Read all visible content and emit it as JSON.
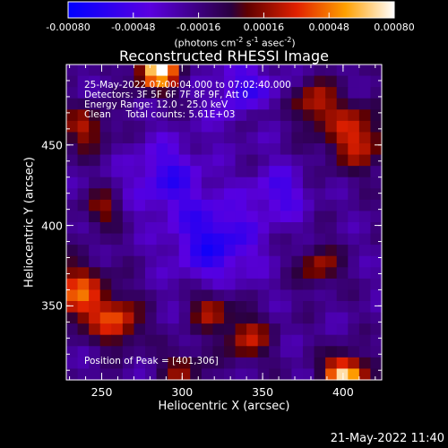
{
  "colorbar": {
    "ticks": [
      "-0.00080",
      "-0.00048",
      "-0.00016",
      "0.00016",
      "0.00048",
      "0.00080"
    ],
    "unit": "(photons cm",
    "unit_exp1": "-2",
    "unit_mid": " s",
    "unit_exp2": "-1",
    "unit_tail": " asec",
    "unit_exp3": "-2",
    "unit_end": ")"
  },
  "annotations": {
    "line1": "25-May-2022 07:00:04.000 to 07:02:40.000",
    "line2": "Detectors: 3F 5F 6F 7F 8F 9F, Att 0",
    "line3": "Energy Range: 12.0 - 25.0 keV",
    "line4": "Clean     Total counts: 5.61E+03",
    "peak": "Position of Peak = [401,306]"
  },
  "footer": "21-May-2022 11:40",
  "chart_data": {
    "type": "heatmap",
    "title": "Reconstructed RHESSI Image",
    "xlabel": "Heliocentric X (arcsec)",
    "ylabel": "Heliocentric Y (arcsec)",
    "xlim": [
      228,
      424
    ],
    "ylim": [
      304,
      500
    ],
    "xticks": [
      250,
      300,
      350,
      400
    ],
    "yticks": [
      350,
      400,
      450
    ],
    "clim": [
      -0.0008,
      0.0008
    ],
    "colormap": "rhessi",
    "peak": [
      401,
      306
    ],
    "grid_n": 28,
    "sources": [
      {
        "x": 285,
        "y": 497,
        "amp": 0.00095,
        "sigma": 9
      },
      {
        "x": 401,
        "y": 306,
        "amp": 0.00095,
        "sigma": 9
      },
      {
        "x": 408,
        "y": 455,
        "amp": 0.0005,
        "sigma": 14
      },
      {
        "x": 382,
        "y": 476,
        "amp": 0.00045,
        "sigma": 10
      },
      {
        "x": 235,
        "y": 357,
        "amp": 0.0006,
        "sigma": 13
      },
      {
        "x": 260,
        "y": 340,
        "amp": 0.00055,
        "sigma": 10
      },
      {
        "x": 340,
        "y": 330,
        "amp": 0.00045,
        "sigma": 10
      },
      {
        "x": 318,
        "y": 348,
        "amp": 0.00042,
        "sigma": 9
      },
      {
        "x": 385,
        "y": 375,
        "amp": 0.0004,
        "sigma": 9
      },
      {
        "x": 250,
        "y": 410,
        "amp": 0.00035,
        "sigma": 8
      },
      {
        "x": 240,
        "y": 460,
        "amp": 0.0004,
        "sigma": 10
      },
      {
        "x": 300,
        "y": 310,
        "amp": 0.00035,
        "sigma": 9
      },
      {
        "x": 345,
        "y": 470,
        "amp": 0.0003,
        "sigma": 8
      },
      {
        "x": 320,
        "y": 390,
        "amp": -0.00045,
        "sigma": 18
      },
      {
        "x": 340,
        "y": 480,
        "amp": -0.0004,
        "sigma": 14
      },
      {
        "x": 290,
        "y": 430,
        "amp": -0.00035,
        "sigma": 16
      },
      {
        "x": 360,
        "y": 420,
        "amp": -0.0003,
        "sigma": 12
      }
    ]
  }
}
